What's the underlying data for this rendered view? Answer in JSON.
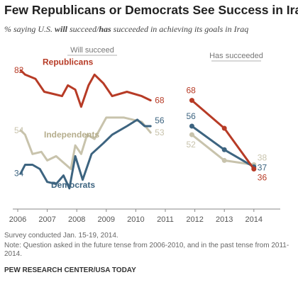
{
  "title": "Few Republicans or Democrats See Success in Iraq",
  "subtitle": {
    "pre": "% saying U.S. ",
    "will": "will",
    "mid1": " succeed/",
    "has": "has",
    "post": " succeeded in achieving its goals in Iraq"
  },
  "notes": {
    "survey": "Survey conducted Jan. 15-19, 2014.",
    "note": "Note: Question asked in the future tense from 2006-2010, and in the past tense from 2011-2014.",
    "source": "PEW RESEARCH CENTER/USA TODAY"
  },
  "chart_data": {
    "type": "line",
    "sections": [
      {
        "label": "Will succeed",
        "x_range": [
          2006,
          2010.5
        ]
      },
      {
        "label": "Has succeeded",
        "x_range": [
          2011.8,
          2014
        ]
      }
    ],
    "x_ticks": [
      "2006",
      "2007",
      "2008",
      "2009",
      "2010",
      "2011",
      "2012",
      "2013",
      "2014"
    ],
    "series": [
      {
        "name": "Republicans",
        "color": "#b73b26",
        "will_succeed": [
          [
            2006.1,
            82
          ],
          [
            2006.25,
            80
          ],
          [
            2006.6,
            78
          ],
          [
            2006.9,
            72
          ],
          [
            2007.2,
            71
          ],
          [
            2007.5,
            70
          ],
          [
            2007.7,
            75
          ],
          [
            2007.95,
            73
          ],
          [
            2008.15,
            65
          ],
          [
            2008.4,
            75
          ],
          [
            2008.6,
            80
          ],
          [
            2008.9,
            76
          ],
          [
            2009.2,
            70
          ],
          [
            2009.7,
            72
          ],
          [
            2010.2,
            70
          ],
          [
            2010.5,
            68
          ]
        ],
        "has_succeeded": [
          [
            2011.9,
            68
          ],
          [
            2013.0,
            55
          ],
          [
            2014.0,
            36
          ]
        ],
        "start_label": "82",
        "end_label": "68",
        "recent_start_label": "68",
        "recent_end_label": "36"
      },
      {
        "name": "Independents",
        "color": "#c8c3ac",
        "will_succeed": [
          [
            2006.1,
            54
          ],
          [
            2006.25,
            52
          ],
          [
            2006.5,
            43
          ],
          [
            2006.8,
            44
          ],
          [
            2007.0,
            40
          ],
          [
            2007.3,
            42
          ],
          [
            2007.55,
            39
          ],
          [
            2007.8,
            36
          ],
          [
            2007.95,
            47
          ],
          [
            2008.15,
            43
          ],
          [
            2008.35,
            52
          ],
          [
            2008.6,
            50
          ],
          [
            2009.0,
            60
          ],
          [
            2009.6,
            60
          ],
          [
            2010.2,
            58
          ],
          [
            2010.5,
            53
          ]
        ],
        "has_succeeded": [
          [
            2011.9,
            52
          ],
          [
            2013.0,
            40
          ],
          [
            2014.0,
            38
          ]
        ],
        "start_label": "54",
        "end_label": "53",
        "recent_start_label": "52",
        "recent_end_label": "38"
      },
      {
        "name": "Democrats",
        "color": "#3d6480",
        "will_succeed": [
          [
            2006.1,
            34
          ],
          [
            2006.25,
            38
          ],
          [
            2006.5,
            38
          ],
          [
            2006.75,
            36
          ],
          [
            2007.0,
            30
          ],
          [
            2007.3,
            29
          ],
          [
            2007.55,
            33
          ],
          [
            2007.75,
            27
          ],
          [
            2007.95,
            42
          ],
          [
            2008.2,
            31
          ],
          [
            2008.5,
            43
          ],
          [
            2008.9,
            48
          ],
          [
            2009.2,
            52
          ],
          [
            2009.7,
            56
          ],
          [
            2010.05,
            59
          ],
          [
            2010.3,
            56
          ],
          [
            2010.5,
            56
          ]
        ],
        "has_succeeded": [
          [
            2011.9,
            56
          ],
          [
            2013.0,
            45
          ],
          [
            2014.0,
            37
          ]
        ],
        "start_label": "34",
        "end_label": "56",
        "recent_start_label": "56",
        "recent_end_label": "37"
      }
    ],
    "series_labels": {
      "Republicans": "Republicans",
      "Independents": "Independents",
      "Democrats": "Democrats"
    },
    "ylim": [
      20,
      90
    ]
  }
}
